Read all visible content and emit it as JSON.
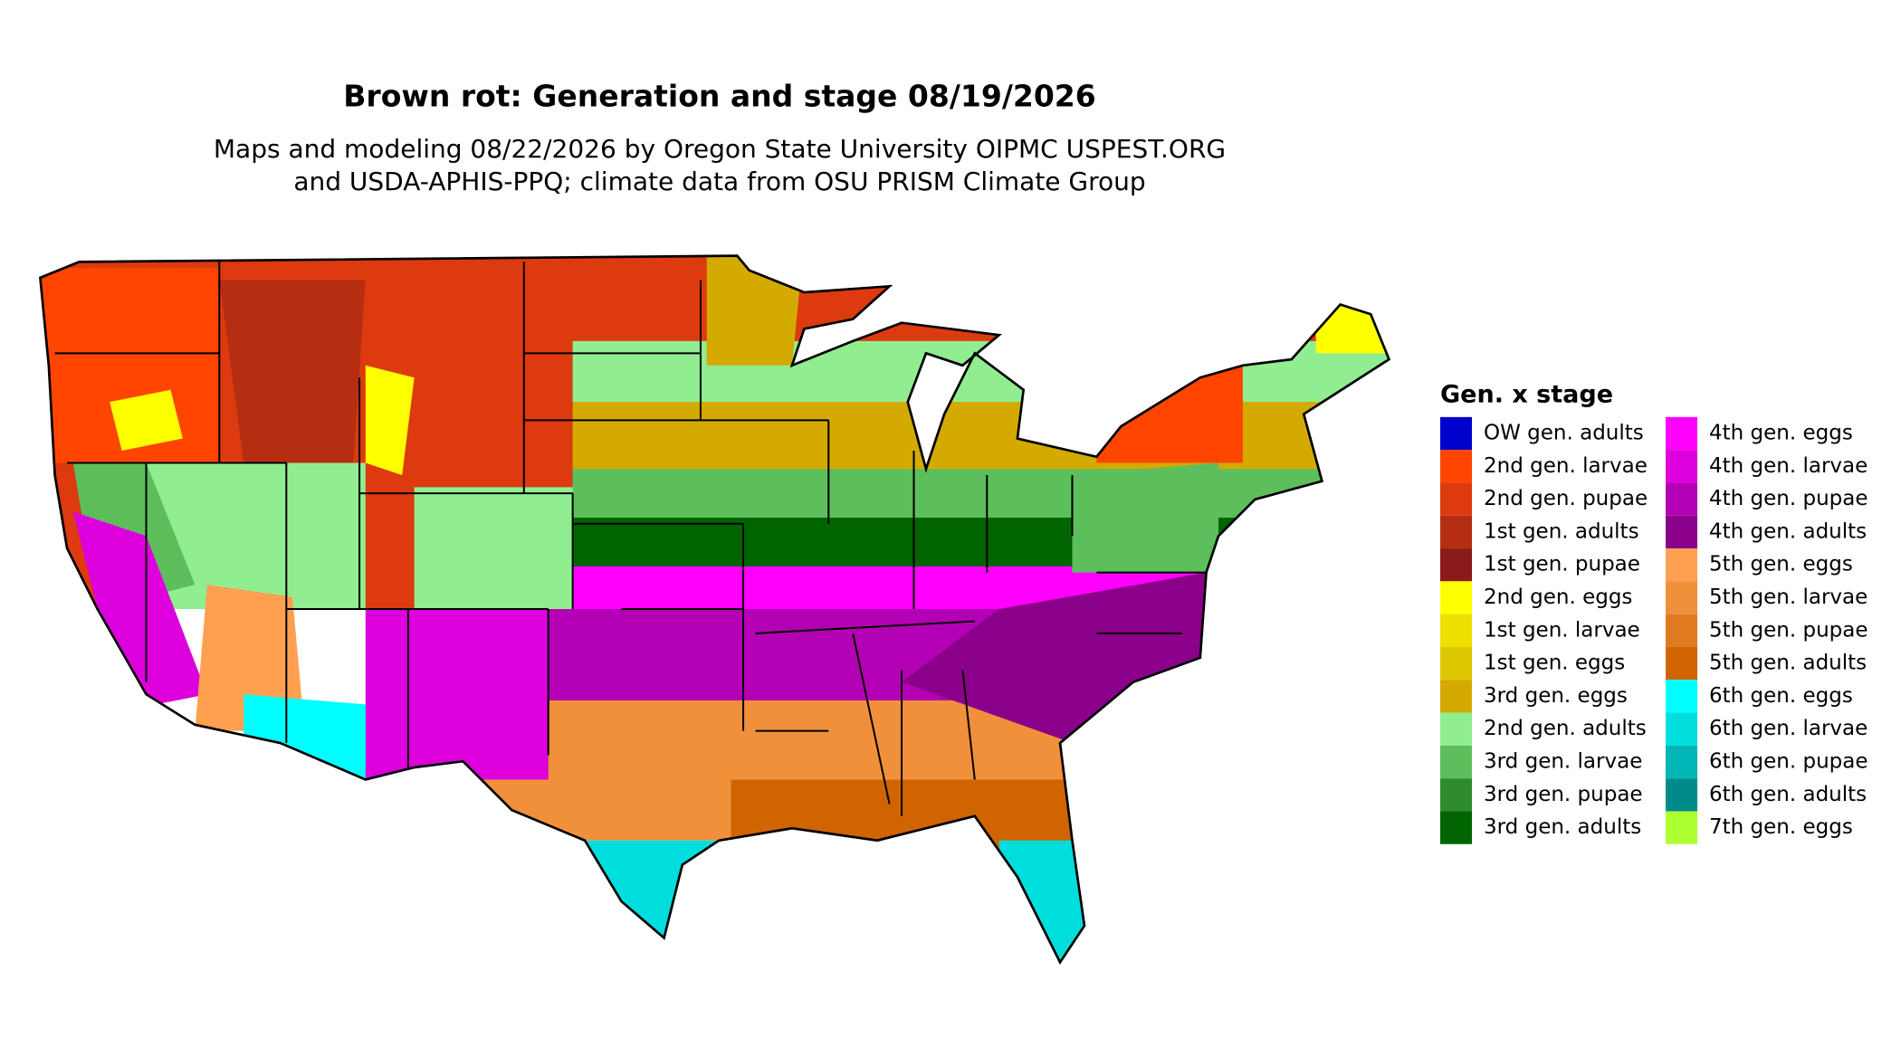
{
  "header": {
    "title": "Brown rot: Generation and stage 08/19/2026",
    "subtitle_lines": [
      "Maps and modeling 08/22/2026 by Oregon State University OIPMC USPEST.ORG",
      "and USDA-APHIS-PPQ; climate data from OSU PRISM Climate Group"
    ]
  },
  "legend": {
    "title": "Gen. x stage",
    "items": [
      {
        "label": "OW gen. adults",
        "color": "#0000cd"
      },
      {
        "label": "2nd gen. larvae",
        "color": "#ff4500"
      },
      {
        "label": "2nd gen. pupae",
        "color": "#dd3a0f"
      },
      {
        "label": "1st gen. adults",
        "color": "#b52e12"
      },
      {
        "label": "1st gen. pupae",
        "color": "#8b1a1a"
      },
      {
        "label": "2nd gen. eggs",
        "color": "#ffff00"
      },
      {
        "label": "1st gen. larvae",
        "color": "#eee000"
      },
      {
        "label": "1st gen. eggs",
        "color": "#ddc800"
      },
      {
        "label": "3rd gen. eggs",
        "color": "#d4aa00"
      },
      {
        "label": "2nd gen. adults",
        "color": "#90ee90"
      },
      {
        "label": "3rd gen. larvae",
        "color": "#5cbf5c"
      },
      {
        "label": "3rd gen. pupae",
        "color": "#2e8b2e"
      },
      {
        "label": "3rd gen. adults",
        "color": "#006400"
      },
      {
        "label": "4th gen. eggs",
        "color": "#ff00ff"
      },
      {
        "label": "4th gen. larvae",
        "color": "#dd00dd"
      },
      {
        "label": "4th gen. pupae",
        "color": "#b400b4"
      },
      {
        "label": "4th gen. adults",
        "color": "#8b008b"
      },
      {
        "label": "5th gen. eggs",
        "color": "#ffa050"
      },
      {
        "label": "5th gen. larvae",
        "color": "#f0903a"
      },
      {
        "label": "5th gen. pupae",
        "color": "#e07a20"
      },
      {
        "label": "5th gen. adults",
        "color": "#d06400"
      },
      {
        "label": "6th gen. eggs",
        "color": "#00ffff"
      },
      {
        "label": "6th gen. larvae",
        "color": "#00dddd"
      },
      {
        "label": "6th gen. pupae",
        "color": "#00b5b5"
      },
      {
        "label": "6th gen. adults",
        "color": "#008b8b"
      },
      {
        "label": "7th gen. eggs",
        "color": "#adff2f"
      }
    ]
  }
}
